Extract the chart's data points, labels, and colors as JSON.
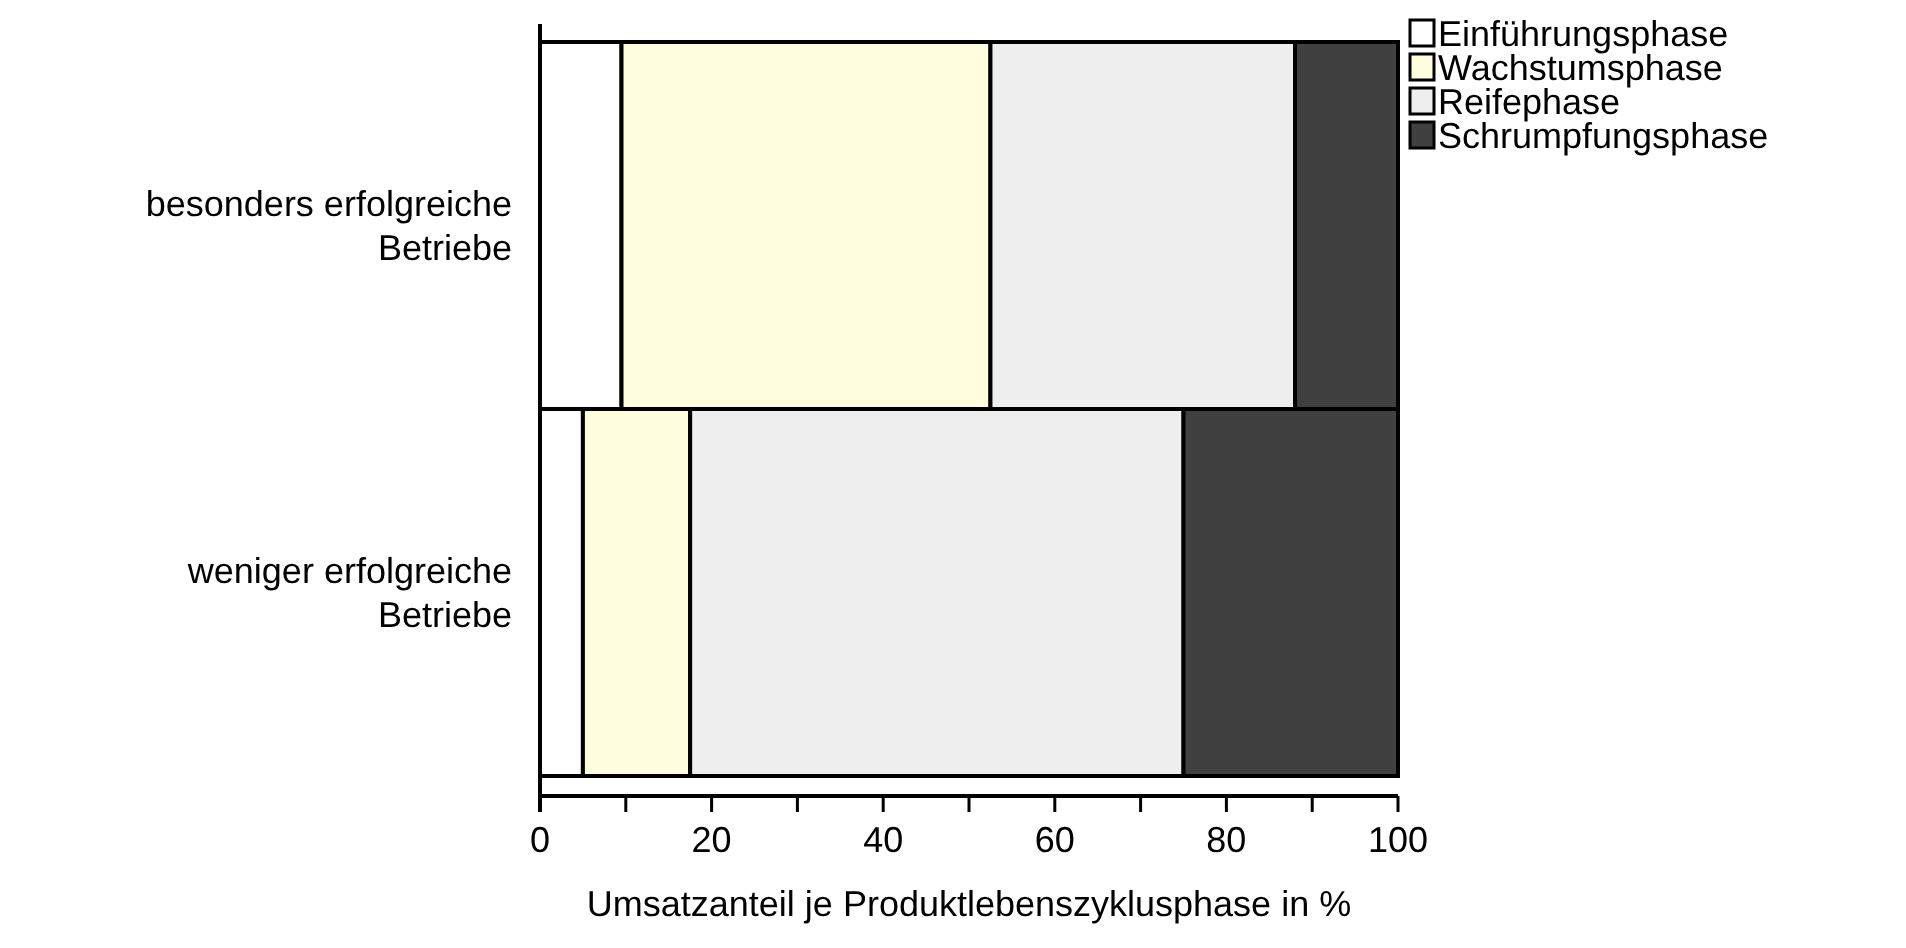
{
  "chart_data": {
    "type": "bar",
    "orientation": "horizontal",
    "stacked": true,
    "categories": [
      "besonders erfolgreiche Betriebe",
      "weniger erfolgreiche Betriebe"
    ],
    "series": [
      {
        "name": "Einführungsphase",
        "color": "#ffffff",
        "values": [
          9.5,
          5
        ]
      },
      {
        "name": "Wachstumsphase",
        "color": "#ffffe0",
        "values": [
          43,
          12.5
        ]
      },
      {
        "name": "Reifephase",
        "color": "#eeeeee",
        "values": [
          35.5,
          57.5
        ]
      },
      {
        "name": "Schrumpfungsphase",
        "color": "#404040",
        "values": [
          12,
          25
        ]
      }
    ],
    "xlim": [
      0,
      100
    ],
    "xticks": [
      0,
      {
        "value": 10,
        "label": null
      },
      20,
      {
        "value": 30,
        "label": null
      },
      40,
      {
        "value": 50,
        "label": null
      },
      60,
      {
        "value": 70,
        "label": null
      },
      80,
      {
        "value": 90,
        "label": null
      },
      100
    ],
    "xlabel": "Umsatzanteil je Produktlebenszyklusphase in %",
    "legend": "top right",
    "grid": false
  }
}
